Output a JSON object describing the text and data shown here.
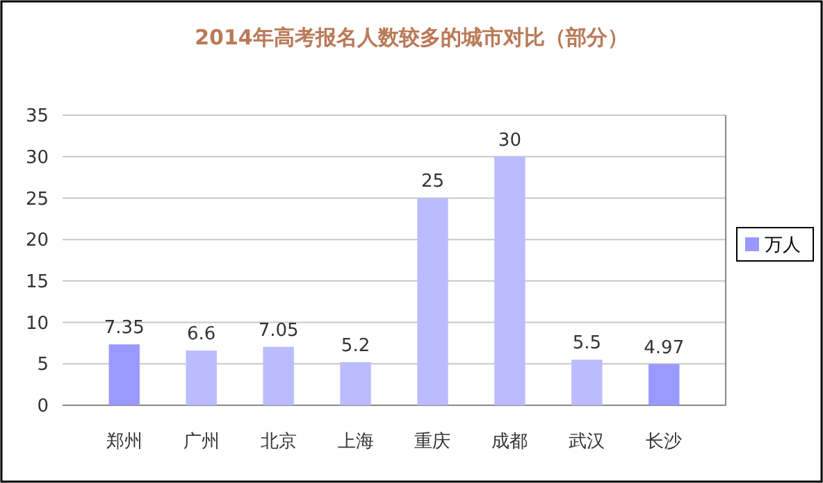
{
  "chart_data": {
    "type": "bar",
    "title": "2014年高考报名人数较多的城市对比（部分）",
    "categories": [
      "郑州",
      "广州",
      "北京",
      "上海",
      "重庆",
      "成都",
      "武汉",
      "长沙"
    ],
    "series": [
      {
        "name": "万人",
        "color": "#9999ff",
        "colors": [
          "#9999ff",
          "#bbbbff",
          "#bbbbff",
          "#bbbbff",
          "#bbbbff",
          "#bbbbff",
          "#bbbbff",
          "#9999ff"
        ],
        "values": [
          7.35,
          6.6,
          7.05,
          5.2,
          25,
          30,
          5.5,
          4.97
        ]
      }
    ],
    "ylim": [
      0,
      35
    ],
    "yticks": [
      0,
      5,
      10,
      15,
      20,
      25,
      30,
      35
    ],
    "grid": "y",
    "data_labels": true,
    "legend": "right"
  }
}
